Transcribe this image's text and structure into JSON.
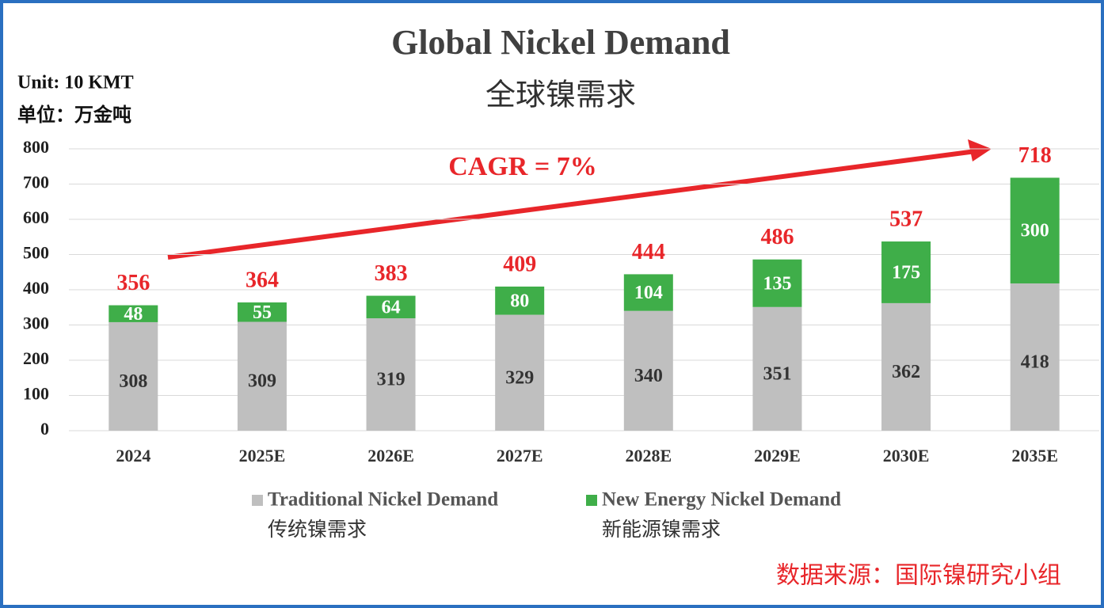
{
  "chart_data": {
    "type": "stacked_bar",
    "title": "Global Nickel Demand",
    "subtitle": "全球镍需求",
    "unit_labels": [
      "Unit: 10 KMT",
      "单位：万金吨"
    ],
    "annotation": "CAGR = 7%",
    "source": "数据来源：国际镍研究小组",
    "categories": [
      "2024",
      "2025E",
      "2026E",
      "2027E",
      "2028E",
      "2029E",
      "2030E",
      "2035E"
    ],
    "series": [
      {
        "name": "Traditional Nickel Demand",
        "name_zh": "传统镍需求",
        "color": "#bfbfbf",
        "values": [
          308,
          309,
          319,
          329,
          340,
          351,
          362,
          418
        ]
      },
      {
        "name": "New Energy Nickel Demand",
        "name_zh": "新能源镍需求",
        "color": "#3fae49",
        "values": [
          48,
          55,
          64,
          80,
          104,
          135,
          175,
          300
        ]
      }
    ],
    "totals": [
      356,
      364,
      383,
      409,
      444,
      486,
      537,
      718
    ],
    "ylim": [
      0,
      800
    ],
    "yticks": [
      0,
      100,
      200,
      300,
      400,
      500,
      600,
      700,
      800
    ],
    "grid": true
  }
}
